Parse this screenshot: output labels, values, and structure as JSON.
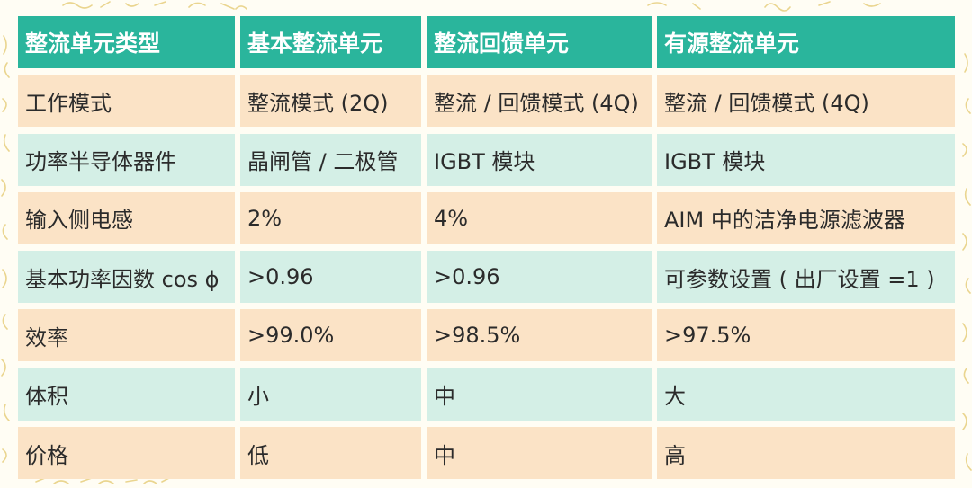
{
  "table": {
    "headers": [
      "整流单元类型",
      "基本整流单元",
      "整流回馈单元",
      "有源整流单元"
    ],
    "rows": [
      {
        "label": "工作模式",
        "basic": "整流模式 (2Q)",
        "feedback": "整流 / 回馈模式 (4Q)",
        "active": "整流 / 回馈模式 (4Q)",
        "color": "#fbe3c6"
      },
      {
        "label": "功率半导体器件",
        "basic": "晶闸管 / 二极管",
        "feedback": "IGBT 模块",
        "active": "IGBT 模块",
        "color": "#d4efe6"
      },
      {
        "label": "输入侧电感",
        "basic": "2%",
        "feedback": "4%",
        "active": "AIM 中的洁净电源滤波器",
        "color": "#fbe3c6"
      },
      {
        "label": "基本功率因数 cos ϕ",
        "basic": ">0.96",
        "feedback": ">0.96",
        "active": "可参数设置 ( 出厂设置 =1 )",
        "color": "#d4efe6"
      },
      {
        "label": "效率",
        "basic": ">99.0%",
        "feedback": ">98.5%",
        "active": ">97.5%",
        "color": "#fbe3c6"
      },
      {
        "label": "体积",
        "basic": "小",
        "feedback": "中",
        "active": "大",
        "color": "#d4efe6"
      },
      {
        "label": "价格",
        "basic": "低",
        "feedback": "中",
        "active": "高",
        "color": "#fbe3c6"
      }
    ]
  },
  "colors": {
    "header_bg": "#2ab59c",
    "header_text": "#ffffff",
    "row_peach": "#fbe3c6",
    "row_mint": "#d4efe6",
    "page_bg": "#fffdf4",
    "decor_stroke": "#ead58f"
  }
}
